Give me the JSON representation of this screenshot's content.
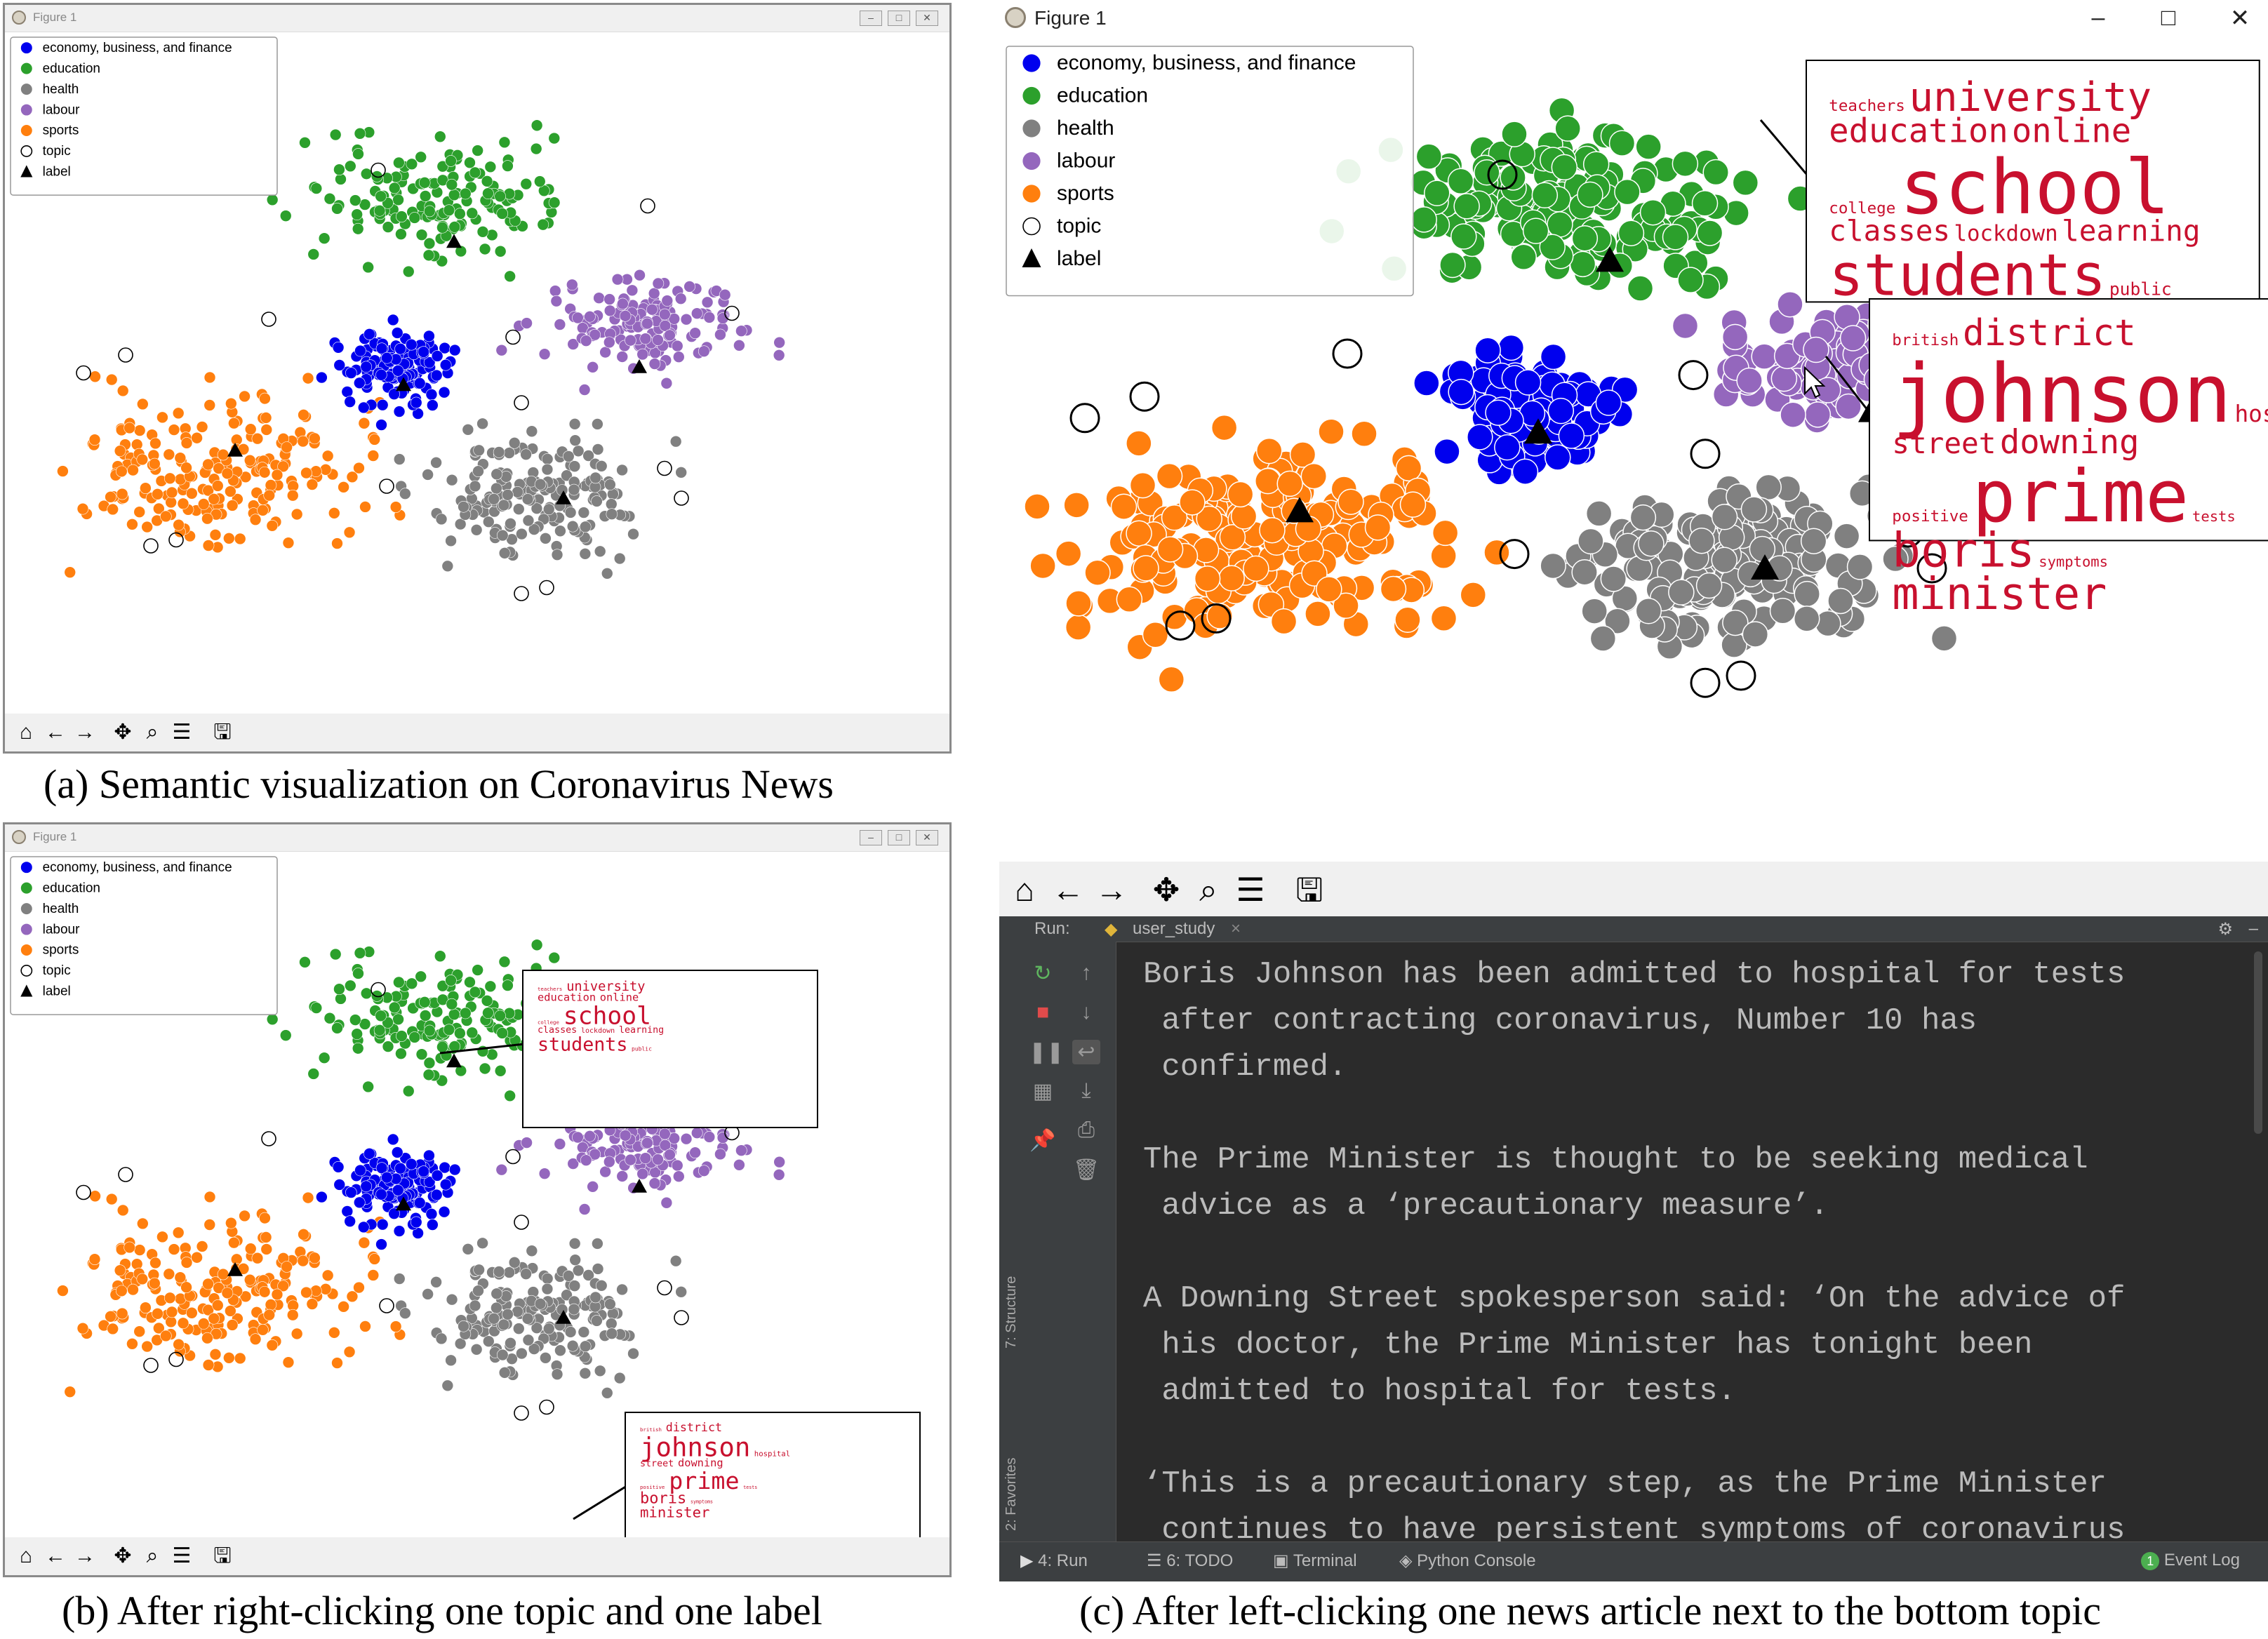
{
  "window_title": "Figure 1",
  "legend": [
    {
      "label": "economy, business, and finance",
      "color": "#0000ee",
      "marker": "dot"
    },
    {
      "label": "education",
      "color": "#2ca02c",
      "marker": "dot"
    },
    {
      "label": "health",
      "color": "#808080",
      "marker": "dot"
    },
    {
      "label": "labour",
      "color": "#9467bd",
      "marker": "dot"
    },
    {
      "label": "sports",
      "color": "#ff7f0e",
      "marker": "dot"
    },
    {
      "label": "topic",
      "color": "#000000",
      "marker": "circle"
    },
    {
      "label": "label",
      "color": "#000000",
      "marker": "triangle"
    }
  ],
  "wordcloud_education": [
    {
      "w": "teachers",
      "s": 22
    },
    {
      "w": "university",
      "s": 56
    },
    {
      "w": "education",
      "s": 46
    },
    {
      "w": "online",
      "s": 46
    },
    {
      "w": "college",
      "s": 22
    },
    {
      "w": "school",
      "s": 104
    },
    {
      "w": "classes",
      "s": 40
    },
    {
      "w": "lockdown",
      "s": 30
    },
    {
      "w": "learning",
      "s": 40
    },
    {
      "w": "students",
      "s": 80
    },
    {
      "w": "public",
      "s": 24
    }
  ],
  "wordcloud_health": [
    {
      "w": "british",
      "s": 22
    },
    {
      "w": "district",
      "s": 50
    },
    {
      "w": "johnson",
      "s": 112
    },
    {
      "w": "hospital",
      "s": 32
    },
    {
      "w": "street",
      "s": 40
    },
    {
      "w": "downing",
      "s": 46
    },
    {
      "w": "positive",
      "s": 22
    },
    {
      "w": "prime",
      "s": 100
    },
    {
      "w": "tests",
      "s": 20
    },
    {
      "w": "boris",
      "s": 66
    },
    {
      "w": "symptoms",
      "s": 20
    },
    {
      "w": "minister",
      "s": 62
    }
  ],
  "captions": {
    "a": "(a) Semantic visualization on Coronavirus News",
    "b": "(b) After right-clicking one topic and one label",
    "c": "(c) After left-clicking one news article next to the bottom topic"
  },
  "ide": {
    "run_label": "Run:",
    "tab_name": "user_study",
    "lines": [
      "Boris Johnson has been admitted to hospital for tests",
      " after contracting coronavirus, Number 10 has",
      " confirmed.",
      "",
      "The Prime Minister is thought to be seeking medical",
      " advice as a ‘precautionary measure’.",
      "",
      "A Downing Street spokesperson said: ‘On the advice of",
      " his doctor, the Prime Minister has tonight been",
      " admitted to hospital for tests.",
      "",
      "‘This is a precautionary step, as the Prime Minister",
      " continues to have persistent symptoms of coronavirus"
    ],
    "status_items": [
      "4: Run",
      "6: TODO",
      "Terminal",
      "Python Console"
    ],
    "event_log": "Event Log",
    "event_count": "1",
    "side_structure": "7: Structure",
    "side_favorites": "2: Favorites"
  },
  "colors": {
    "economy": "#0000ee",
    "education": "#2ca02c",
    "health": "#808080",
    "labour": "#9467bd",
    "sports": "#ff7f0e",
    "wordcloud": "#c8102e"
  }
}
